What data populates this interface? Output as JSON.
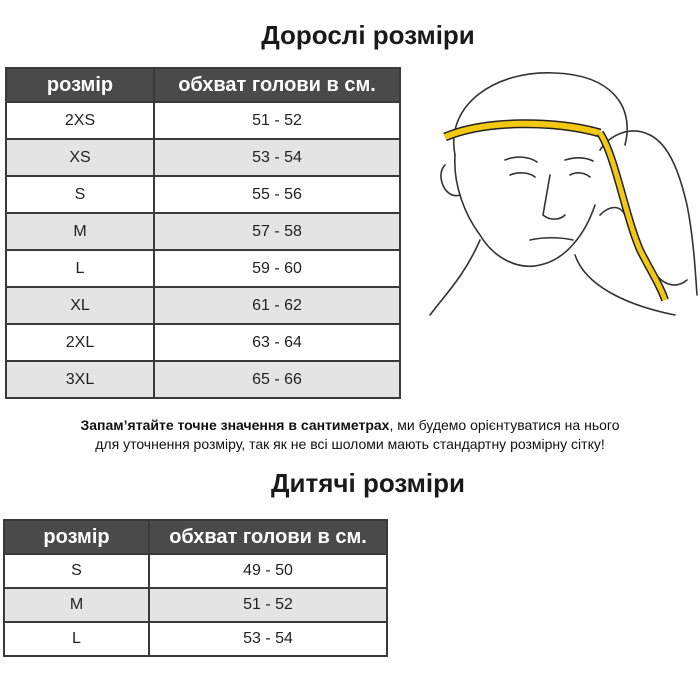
{
  "adult": {
    "title": "Дорослі розміри",
    "headers": [
      "розмір",
      "обхват голови в см."
    ],
    "rows": [
      {
        "size": "2XS",
        "range": "51 - 52"
      },
      {
        "size": "XS",
        "range": "53 - 54"
      },
      {
        "size": "S",
        "range": "55 - 56"
      },
      {
        "size": "M",
        "range": "57 - 58"
      },
      {
        "size": "L",
        "range": "59 - 60"
      },
      {
        "size": "XL",
        "range": "61 - 62"
      },
      {
        "size": "2XL",
        "range": "63 - 64"
      },
      {
        "size": "3XL",
        "range": "65 - 66"
      }
    ]
  },
  "note": {
    "bold": "Запам’ятайте точне значення в сантиметрах",
    "rest_line1": ", ми будемо орієнтуватися на нього",
    "line2": "для уточнення розміру, так як не всі шоломи мають стандартну розмірну сітку!"
  },
  "kids": {
    "title": "Дитячі розміри",
    "headers": [
      "розмір",
      "обхват голови в см."
    ],
    "rows": [
      {
        "size": "S",
        "range": "49 - 50"
      },
      {
        "size": "M",
        "range": "51 - 52"
      },
      {
        "size": "L",
        "range": "53 - 54"
      }
    ]
  },
  "colors": {
    "header_bg": "#4a4a4a",
    "alt_row": "#e4e4e4",
    "tape": "#f2c811"
  },
  "illustration": "head-measuring-tape-icon"
}
